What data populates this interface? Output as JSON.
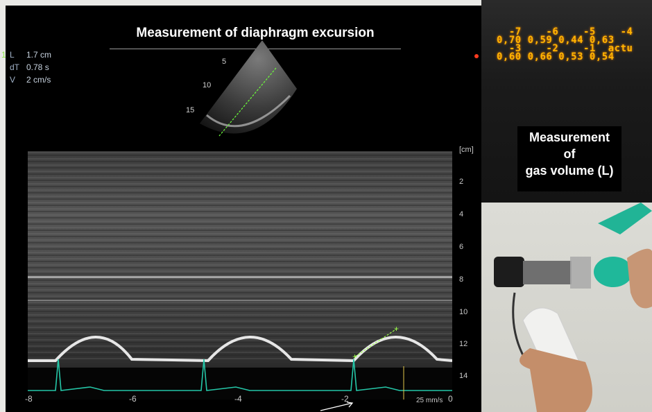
{
  "title": "Measurement of diaphragm excursion",
  "measurements": [
    {
      "index": "1",
      "label": "L",
      "value": "1.7 cm"
    },
    {
      "index": "",
      "label": "dT",
      "value": "0.78 s"
    },
    {
      "index": "",
      "label": "V",
      "value": "2 cm/s"
    }
  ],
  "sector_depth_labels": [
    "5",
    "10",
    "15"
  ],
  "depth_scale": {
    "unit_label": "[cm]",
    "ticks": [
      "2",
      "4",
      "6",
      "8",
      "10",
      "12",
      "14"
    ]
  },
  "x_axis_ticks": [
    "-8",
    "-6",
    "-4",
    "-2",
    "0"
  ],
  "sweep_speed": "25 mm/s",
  "spirometer_display": {
    "row1_labels": "  -7    -6    -5    -4",
    "row1_values": "0,70 0,59 0,44 0,63",
    "row2_labels": "  -3    -2    -1  actu",
    "row2_values": "0,60 0,66 0,53 0,54"
  },
  "gas_box": {
    "line1": "Measurement",
    "line2": "of",
    "line3": "gas volume (L)"
  },
  "colors": {
    "ecg": "#25c7a8",
    "caliper": "#9cff4a",
    "led": "#ffb400"
  }
}
